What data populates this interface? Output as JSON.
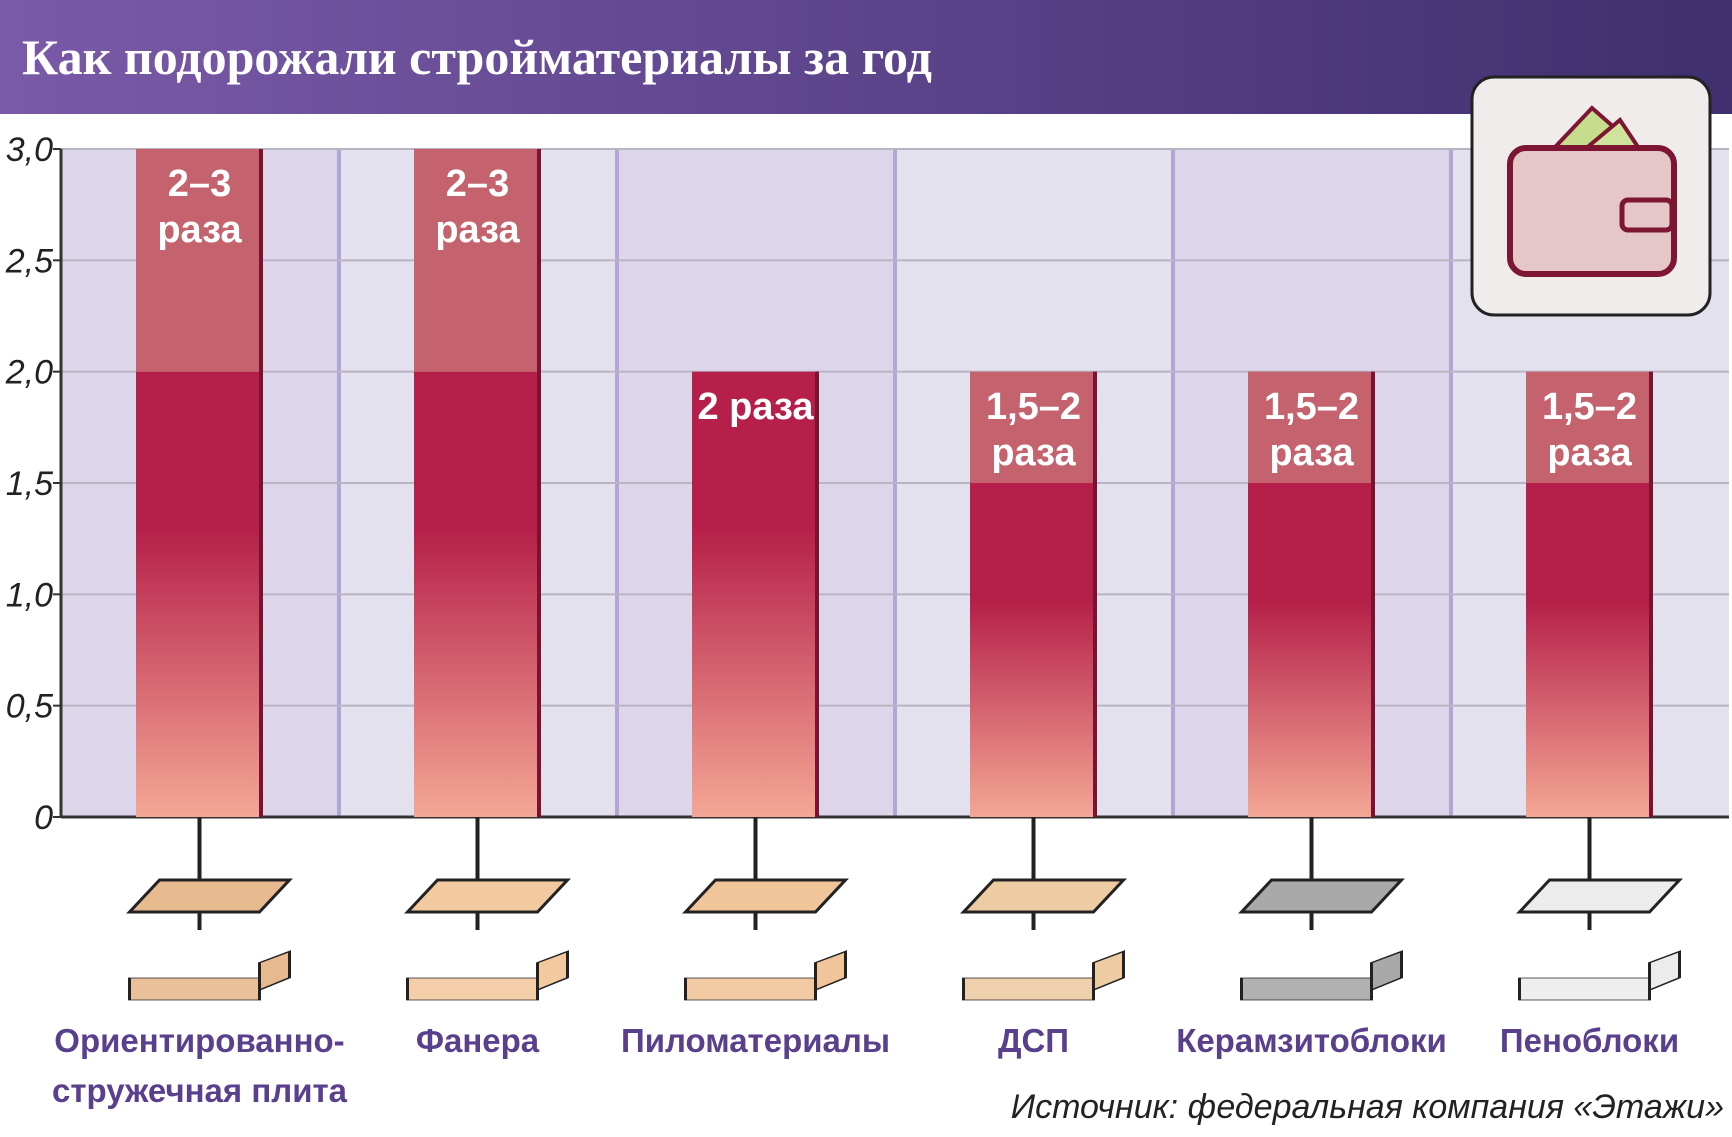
{
  "chart_data": {
    "type": "range_bar",
    "title": "Как подорожали стройматериалы за год",
    "categories": [
      "Ориентированно-стружечная плита",
      "Фанера",
      "Пиломатериалы",
      "ДСП",
      "Керамзитоблоки",
      "Пеноблоки"
    ],
    "low": [
      2,
      2,
      2,
      1.5,
      1.5,
      1.5
    ],
    "high": [
      3,
      3,
      2,
      2,
      2,
      2
    ],
    "value_labels": [
      "2–3 раза",
      "2–3 раза",
      "2 раза",
      "1,5–2 раза",
      "1,5–2 раза",
      "1,5–2 раза"
    ],
    "ylim": [
      0,
      3
    ],
    "yticks": [
      0,
      {
        "value": 0.5,
        "label": "0,5"
      },
      {
        "value": 1,
        "label": "1,0"
      },
      {
        "value": 1.5,
        "label": "1,5"
      },
      {
        "value": 2,
        "label": "2,0"
      },
      {
        "value": 2.5,
        "label": "2,5"
      },
      {
        "value": 3,
        "label": "3,0"
      }
    ],
    "grid": true,
    "source": "Источник: федеральная компания «Этажи»"
  }
}
